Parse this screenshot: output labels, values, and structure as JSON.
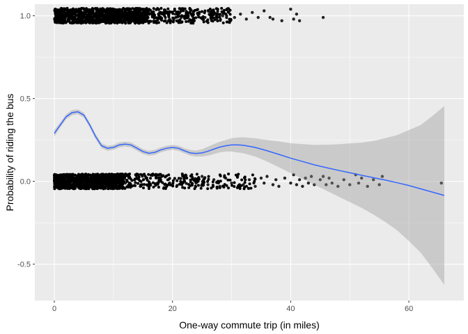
{
  "chart_data": {
    "type": "scatter",
    "title": "",
    "xlabel": "One-way commute trip (in miles)",
    "ylabel": "Probability of riding the bus",
    "xlim": [
      -3.3,
      69.3
    ],
    "ylim": [
      -0.72,
      1.07
    ],
    "x_ticks": [
      0,
      20,
      40,
      60
    ],
    "x_tick_labels": [
      "0",
      "20",
      "40",
      "60"
    ],
    "y_ticks": [
      -0.5,
      0.0,
      0.5,
      1.0
    ],
    "y_tick_labels": [
      "-0.5",
      "0.0",
      "0.5",
      "1.0"
    ],
    "grid": true,
    "legend": "none",
    "colors": {
      "panel": "#ebebeb",
      "grid": "#ffffff",
      "points": "#000000",
      "smooth_line": "#3366ff",
      "ribbon": "#999999"
    },
    "series": [
      {
        "type": "scatter",
        "jitter": true,
        "points": [
          [
            0.2,
            0.99
          ],
          [
            1.5,
            1.01
          ],
          [
            3,
            0.98
          ],
          [
            5,
            1.02
          ],
          [
            7,
            0.97
          ],
          [
            9,
            1.0
          ],
          [
            11,
            1.03
          ],
          [
            13,
            0.98
          ],
          [
            15,
            1.01
          ],
          [
            17,
            0.99
          ],
          [
            18.5,
            1.02
          ],
          [
            19.5,
            0.98
          ],
          [
            20.5,
            1.01
          ],
          [
            21.5,
            0.99
          ],
          [
            22.5,
            1.02
          ],
          [
            23.5,
            0.98
          ],
          [
            24.5,
            1.01
          ],
          [
            25.5,
            0.99
          ],
          [
            26.5,
            1.02
          ],
          [
            27.5,
            0.98
          ],
          [
            28.5,
            1.0
          ],
          [
            29.5,
            1.02
          ],
          [
            30.5,
            0.99
          ],
          [
            31.5,
            1.01
          ],
          [
            32.5,
            0.98
          ],
          [
            33.5,
            1.02
          ],
          [
            34.5,
            0.99
          ],
          [
            35.5,
            1.03
          ],
          [
            36.5,
            0.99
          ],
          [
            37,
            0.98
          ],
          [
            38.5,
            0.97
          ],
          [
            40,
            1.04
          ],
          [
            40.5,
            0.98
          ],
          [
            41,
            1.01
          ],
          [
            41.5,
            0.97
          ],
          [
            45.5,
            0.99
          ],
          [
            0.3,
            -0.01
          ],
          [
            2,
            0.02
          ],
          [
            4,
            -0.03
          ],
          [
            6,
            0.01
          ],
          [
            8,
            -0.02
          ],
          [
            10,
            0.03
          ],
          [
            12,
            -0.01
          ],
          [
            14,
            0.02
          ],
          [
            16,
            -0.03
          ],
          [
            18,
            0.01
          ],
          [
            20,
            -0.02
          ],
          [
            22,
            0.02
          ],
          [
            24,
            -0.01
          ],
          [
            25,
            0.03
          ],
          [
            26,
            -0.02
          ],
          [
            27,
            0.01
          ],
          [
            28,
            -0.03
          ],
          [
            29,
            0.02
          ],
          [
            30,
            -0.01
          ],
          [
            31,
            0.03
          ],
          [
            32,
            -0.02
          ],
          [
            33,
            0.01
          ],
          [
            34,
            -0.03
          ],
          [
            35,
            0.02
          ],
          [
            35.5,
            -0.01
          ],
          [
            36,
            0.03
          ],
          [
            37,
            -0.02
          ],
          [
            37.5,
            0.01
          ],
          [
            38,
            -0.03
          ],
          [
            39,
            0.02
          ],
          [
            40,
            -0.01
          ],
          [
            40.5,
            0.04
          ],
          [
            41,
            -0.02
          ],
          [
            41.5,
            0.01
          ],
          [
            42,
            -0.03
          ],
          [
            42.5,
            0.02
          ],
          [
            43,
            -0.01
          ],
          [
            43.5,
            0.03
          ],
          [
            44,
            -0.02
          ],
          [
            45,
            0.01
          ],
          [
            45.5,
            0.03
          ],
          [
            46,
            -0.02
          ],
          [
            46.5,
            0.02
          ],
          [
            47,
            -0.01
          ],
          [
            48,
            -0.03
          ],
          [
            49,
            0.01
          ],
          [
            50,
            -0.02
          ],
          [
            51,
            0.04
          ],
          [
            51.5,
            -0.01
          ],
          [
            52,
            0.02
          ],
          [
            53,
            -0.03
          ],
          [
            54,
            0.01
          ],
          [
            55,
            -0.02
          ],
          [
            55.5,
            0.03
          ],
          [
            65.5,
            -0.01
          ]
        ]
      },
      {
        "type": "smooth",
        "x": [
          0,
          1,
          2,
          3,
          4,
          5,
          6,
          7,
          8,
          9,
          10,
          11,
          12,
          13,
          14,
          15,
          16,
          17,
          18,
          19,
          20,
          21,
          22,
          23,
          24,
          25,
          26,
          27,
          28,
          29,
          30,
          31,
          32,
          34,
          36,
          38,
          40,
          42,
          44,
          46,
          48,
          50,
          52,
          54,
          56,
          58,
          60,
          62,
          64,
          66
        ],
        "y": [
          0.29,
          0.34,
          0.39,
          0.415,
          0.42,
          0.4,
          0.34,
          0.27,
          0.215,
          0.2,
          0.205,
          0.22,
          0.225,
          0.22,
          0.2,
          0.18,
          0.17,
          0.175,
          0.19,
          0.2,
          0.205,
          0.2,
          0.185,
          0.172,
          0.168,
          0.172,
          0.182,
          0.195,
          0.207,
          0.215,
          0.22,
          0.22,
          0.218,
          0.205,
          0.185,
          0.163,
          0.14,
          0.12,
          0.1,
          0.083,
          0.067,
          0.052,
          0.037,
          0.022,
          0.008,
          -0.008,
          -0.025,
          -0.045,
          -0.065,
          -0.085
        ],
        "lower": [
          0.27,
          0.325,
          0.375,
          0.4,
          0.405,
          0.385,
          0.325,
          0.255,
          0.2,
          0.185,
          0.19,
          0.205,
          0.21,
          0.205,
          0.185,
          0.165,
          0.155,
          0.16,
          0.175,
          0.185,
          0.19,
          0.185,
          0.17,
          0.155,
          0.15,
          0.15,
          0.155,
          0.165,
          0.175,
          0.18,
          0.18,
          0.175,
          0.17,
          0.15,
          0.12,
          0.085,
          0.05,
          0.015,
          -0.02,
          -0.055,
          -0.09,
          -0.125,
          -0.16,
          -0.2,
          -0.245,
          -0.295,
          -0.36,
          -0.43,
          -0.525,
          -0.625
        ],
        "upper": [
          0.31,
          0.355,
          0.405,
          0.43,
          0.435,
          0.415,
          0.355,
          0.285,
          0.23,
          0.215,
          0.22,
          0.235,
          0.24,
          0.235,
          0.215,
          0.195,
          0.185,
          0.19,
          0.205,
          0.215,
          0.22,
          0.215,
          0.2,
          0.19,
          0.186,
          0.194,
          0.209,
          0.225,
          0.239,
          0.25,
          0.26,
          0.265,
          0.266,
          0.26,
          0.25,
          0.241,
          0.23,
          0.225,
          0.22,
          0.221,
          0.224,
          0.229,
          0.234,
          0.244,
          0.261,
          0.279,
          0.31,
          0.34,
          0.395,
          0.455
        ]
      }
    ]
  }
}
